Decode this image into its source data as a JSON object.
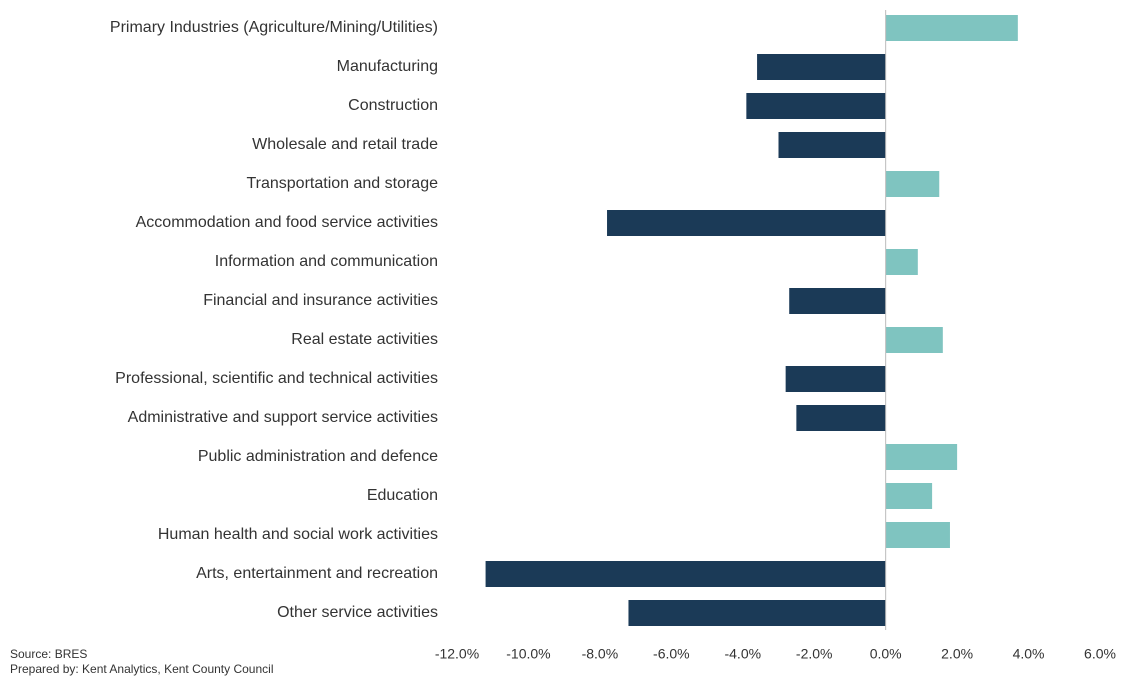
{
  "chart_data": {
    "type": "bar",
    "orientation": "horizontal",
    "categories": [
      "Primary Industries (Agriculture/Mining/Utilities)",
      "Manufacturing",
      "Construction",
      "Wholesale and retail trade",
      "Transportation and storage",
      "Accommodation and food service activities",
      "Information and communication",
      "Financial and insurance activities",
      "Real estate activities",
      "Professional, scientific and technical activities",
      "Administrative and support service activities",
      "Public administration and defence",
      "Education",
      "Human health and social work activities",
      "Arts, entertainment and recreation",
      "Other service activities"
    ],
    "values": [
      3.7,
      -3.6,
      -3.9,
      -3.0,
      1.5,
      -7.8,
      0.9,
      -2.7,
      1.6,
      -2.8,
      -2.5,
      2.0,
      1.3,
      1.8,
      -11.2,
      -7.2
    ],
    "colors": {
      "positive": "#7fc4c0",
      "negative": "#1b3a57"
    },
    "xlim": [
      -12,
      6
    ],
    "xticks": [
      {
        "value": -12,
        "label": "-12.0%"
      },
      {
        "value": -10,
        "label": "-10.0%"
      },
      {
        "value": -8,
        "label": "-8.0%"
      },
      {
        "value": -6,
        "label": "-6.0%"
      },
      {
        "value": -4,
        "label": "-4.0%"
      },
      {
        "value": -2,
        "label": "-2.0%"
      },
      {
        "value": 0,
        "label": "0.0%"
      },
      {
        "value": 2,
        "label": "2.0%"
      },
      {
        "value": 4,
        "label": "4.0%"
      },
      {
        "value": 6,
        "label": "6.0%"
      }
    ],
    "grid": false,
    "notes": [
      "Source: BRES",
      "Prepared by: Kent Analytics, Kent County Council"
    ]
  }
}
